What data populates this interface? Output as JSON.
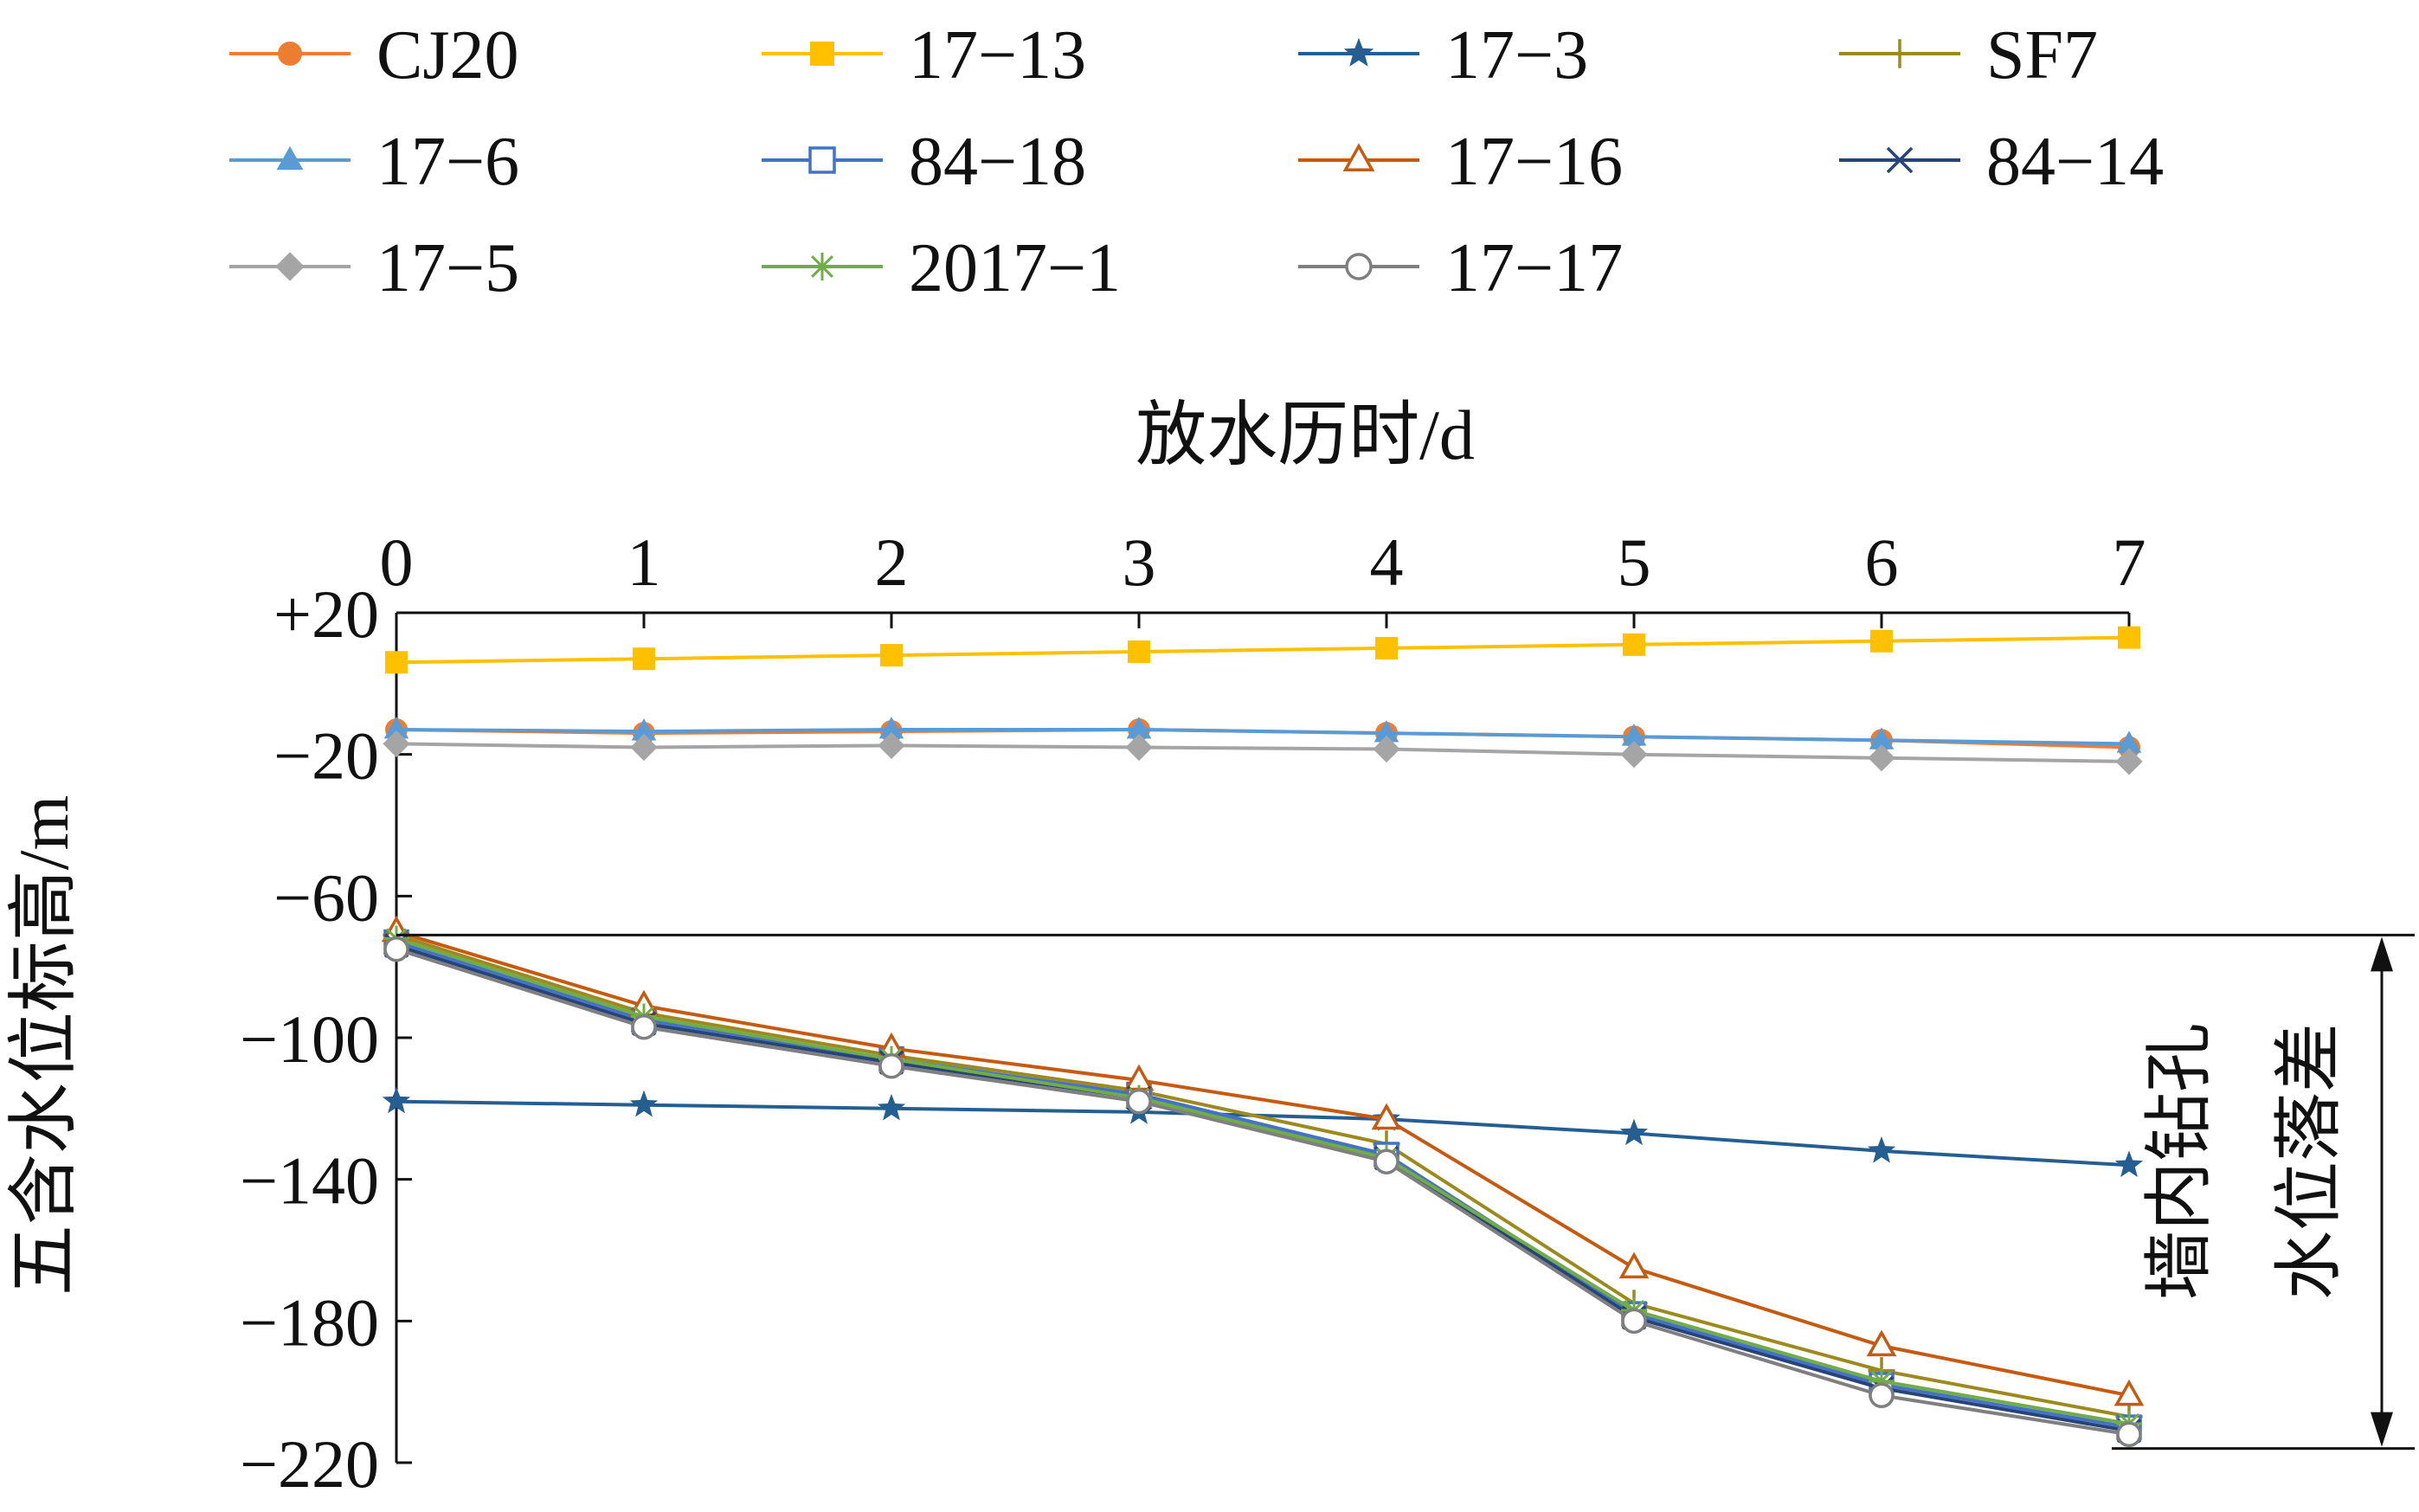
{
  "chart_data": {
    "type": "line",
    "title": "",
    "xlabel": "放水历时/d",
    "ylabel": "五含水位标高/m",
    "x": [
      0,
      1,
      2,
      3,
      4,
      5,
      6,
      7
    ],
    "x_ticks": [
      "0",
      "1",
      "2",
      "3",
      "4",
      "5",
      "6",
      "7"
    ],
    "xlim": [
      0,
      7
    ],
    "x_axis_position": "top",
    "y_ticks": [
      "+20",
      "−20",
      "−60",
      "−100",
      "−140",
      "−180",
      "−220"
    ],
    "y_tick_values": [
      20,
      -20,
      -60,
      -100,
      -140,
      -180,
      -220
    ],
    "ylim": [
      -220,
      20
    ],
    "grid": false,
    "legend_position": "top",
    "annotation": {
      "text_line1": "墙内钻孔",
      "text_line2": "水位落差",
      "y_from": -71,
      "y_to": -216
    },
    "series": [
      {
        "name": "CJ20",
        "color": "#ED7D31",
        "marker": "circle-filled",
        "values": [
          -13,
          -14,
          -13.5,
          -13,
          -14,
          -15,
          -16,
          -18
        ]
      },
      {
        "name": "17−13",
        "color": "#FFC000",
        "marker": "square-filled",
        "values": [
          6,
          7,
          8,
          9,
          10,
          11,
          12,
          13
        ]
      },
      {
        "name": "17−3",
        "color": "#255E91",
        "marker": "star",
        "values": [
          -118,
          -119,
          -120,
          -121,
          -123,
          -127,
          -132,
          -136
        ]
      },
      {
        "name": "SF7",
        "color": "#9C8A1E",
        "marker": "plus",
        "values": [
          -71,
          -93,
          -105,
          -115,
          -130,
          -175,
          -194,
          -207
        ]
      },
      {
        "name": "17−6",
        "color": "#5B9BD5",
        "marker": "triangle-filled",
        "values": [
          -13,
          -13.5,
          -13,
          -13,
          -14,
          -15,
          -16,
          -17
        ]
      },
      {
        "name": "84−18",
        "color": "#4472C4",
        "marker": "square-open",
        "values": [
          -73,
          -95,
          -106,
          -116,
          -133,
          -178,
          -198,
          -210
        ]
      },
      {
        "name": "17−16",
        "color": "#C55A11",
        "marker": "triangle-open",
        "values": [
          -70,
          -91,
          -103,
          -112,
          -123,
          -165,
          -187,
          -201
        ]
      },
      {
        "name": "84−14",
        "color": "#264478",
        "marker": "x",
        "values": [
          -74,
          -96,
          -107,
          -117,
          -134,
          -179,
          -199,
          -211
        ]
      },
      {
        "name": "17−5",
        "color": "#A5A5A5",
        "marker": "diamond-filled",
        "values": [
          -17,
          -18,
          -17.5,
          -18,
          -18.5,
          -20,
          -21,
          -22
        ]
      },
      {
        "name": "2017−1",
        "color": "#70AD47",
        "marker": "asterisk",
        "values": [
          -72,
          -94,
          -106,
          -117,
          -134,
          -177,
          -197,
          -209
        ]
      },
      {
        "name": "17−17",
        "color": "#7F7F7F",
        "marker": "circle-open",
        "values": [
          -75,
          -97,
          -108,
          -118,
          -135,
          -180,
          -201,
          -212
        ]
      }
    ]
  }
}
